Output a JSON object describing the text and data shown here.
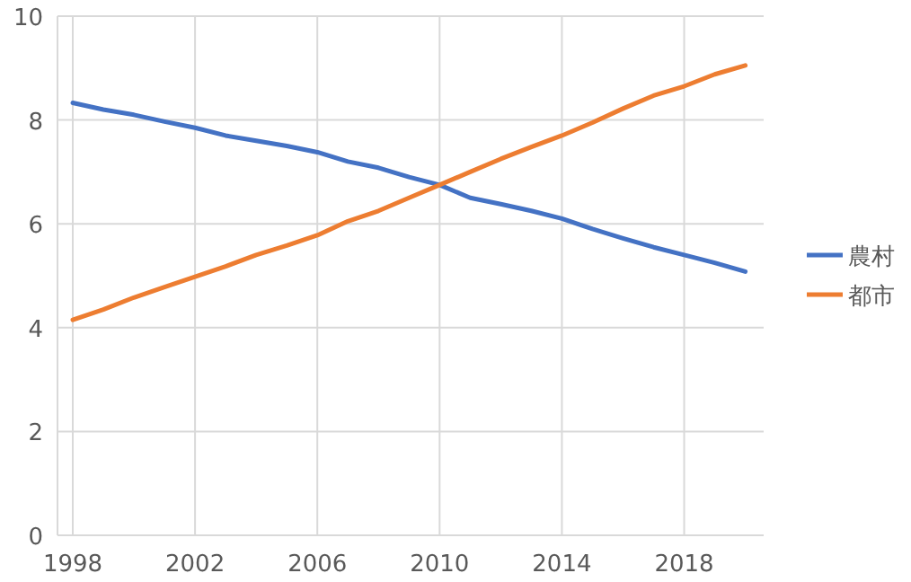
{
  "chart_data": {
    "type": "line",
    "x": [
      1998,
      1999,
      2000,
      2001,
      2002,
      2003,
      2004,
      2005,
      2006,
      2007,
      2008,
      2009,
      2010,
      2011,
      2012,
      2013,
      2014,
      2015,
      2016,
      2017,
      2018,
      2019,
      2020
    ],
    "series": [
      {
        "name": "農村",
        "color": "#4472c4",
        "values": [
          8.33,
          8.2,
          8.1,
          7.97,
          7.85,
          7.7,
          7.6,
          7.5,
          7.38,
          7.2,
          7.08,
          6.9,
          6.75,
          6.5,
          6.38,
          6.25,
          6.1,
          5.9,
          5.72,
          5.55,
          5.4,
          5.25,
          5.08
        ]
      },
      {
        "name": "都市",
        "color": "#ed7d31",
        "values": [
          4.15,
          4.35,
          4.58,
          4.78,
          4.98,
          5.18,
          5.4,
          5.58,
          5.78,
          6.05,
          6.25,
          6.5,
          6.75,
          7.0,
          7.25,
          7.48,
          7.7,
          7.95,
          8.22,
          8.47,
          8.65,
          8.88,
          9.05
        ]
      }
    ],
    "xlim": [
      1997.5,
      2020.6
    ],
    "xticks": [
      1998,
      2002,
      2006,
      2010,
      2014,
      2018
    ],
    "ylim": [
      0,
      10
    ],
    "yticks": [
      0,
      2,
      4,
      6,
      8,
      10
    ],
    "grid": true,
    "legend": "right",
    "marker": "none",
    "line_style": "solid"
  }
}
